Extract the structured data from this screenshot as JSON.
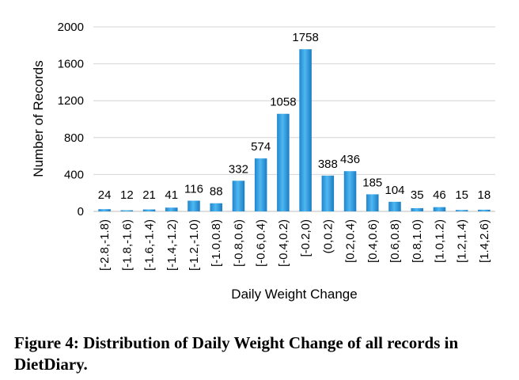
{
  "chart_data": {
    "type": "bar",
    "categories": [
      "[-2.8,-1.8)",
      "[-1.8,-1.6)",
      "[-1.6,-1.4)",
      "[-1.4,-1.2)",
      "[-1.2,-1.0)",
      "[-1.0,0.8)",
      "[-0.8,0.6)",
      "[-0.6,0.4)",
      "[-0.4,0.2)",
      "[-0.2,0)",
      "(0,0.2)",
      "[0.2,0.4)",
      "[0.4,0.6)",
      "[0.6,0.8)",
      "[0.8,1.0)",
      "[1.0,1.2)",
      "[1.2,1.4)",
      "[1.4,2.6)"
    ],
    "values": [
      24,
      12,
      21,
      41,
      116,
      88,
      332,
      574,
      1058,
      1758,
      388,
      436,
      185,
      104,
      35,
      46,
      15,
      18
    ],
    "xlabel": "Daily Weight Change",
    "ylabel": "Number of Records",
    "ylim": [
      0,
      2000
    ],
    "yticks": [
      0,
      400,
      800,
      1200,
      1600,
      2000
    ],
    "grid": true,
    "bar_color": "#2e9fe0"
  },
  "caption": "Figure 4: Distribution of Daily Weight Change of all records in DietDiary."
}
